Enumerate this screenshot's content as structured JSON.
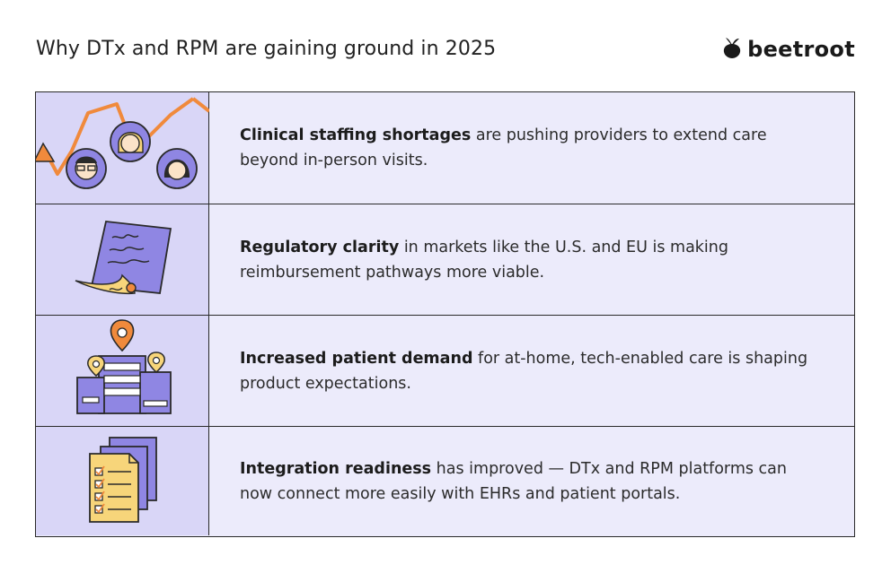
{
  "header": {
    "title": "Why DTx and RPM are gaining ground in 2025",
    "brand": "beetroot"
  },
  "rows": [
    {
      "icon": "staffing-shortage-icon",
      "bold": "Clinical staffing shortages",
      "rest": " are pushing providers to extend care beyond in-person visits."
    },
    {
      "icon": "regulatory-document-icon",
      "bold": "Regulatory clarity",
      "rest": " in markets like the U.S. and EU is making reimbursement pathways more viable."
    },
    {
      "icon": "city-locations-icon",
      "bold": "Increased patient demand",
      "rest": " for at-home, tech-enabled care is shaping product expectations."
    },
    {
      "icon": "checklist-documents-icon",
      "bold": "Integration readiness",
      "rest": " has improved — DTx and RPM platforms can now connect more easily with EHRs and patient portals."
    }
  ],
  "colors": {
    "row_bg": "#ecebfb",
    "icon_bg": "#d9d6f7",
    "accent_orange": "#f08a3c",
    "accent_yellow": "#f7d57a",
    "accent_purple": "#8f86e3"
  }
}
